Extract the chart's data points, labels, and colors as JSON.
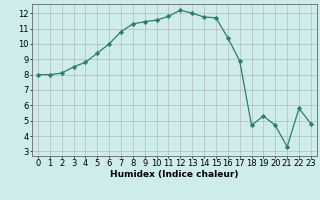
{
  "x": [
    0,
    1,
    2,
    3,
    4,
    5,
    6,
    7,
    8,
    9,
    10,
    11,
    12,
    13,
    14,
    15,
    16,
    17,
    18,
    19,
    20,
    21,
    22,
    23
  ],
  "y": [
    8.0,
    8.0,
    8.1,
    8.5,
    8.8,
    9.4,
    10.0,
    10.8,
    11.3,
    11.45,
    11.55,
    11.8,
    12.2,
    12.0,
    11.75,
    11.7,
    10.4,
    8.9,
    4.7,
    5.3,
    4.7,
    3.3,
    5.8,
    4.8
  ],
  "line_color": "#2e7d6e",
  "marker": "D",
  "marker_size": 2.2,
  "bg_color": "#cdecea",
  "grid_color": "#b0b0b0",
  "xlabel": "Humidex (Indice chaleur)",
  "xlabel_fontsize": 6.5,
  "tick_fontsize": 6,
  "xlim": [
    -0.5,
    23.5
  ],
  "ylim": [
    2.7,
    12.6
  ],
  "yticks": [
    3,
    4,
    5,
    6,
    7,
    8,
    9,
    10,
    11,
    12
  ],
  "xticks": [
    0,
    1,
    2,
    3,
    4,
    5,
    6,
    7,
    8,
    9,
    10,
    11,
    12,
    13,
    14,
    15,
    16,
    17,
    18,
    19,
    20,
    21,
    22,
    23
  ]
}
